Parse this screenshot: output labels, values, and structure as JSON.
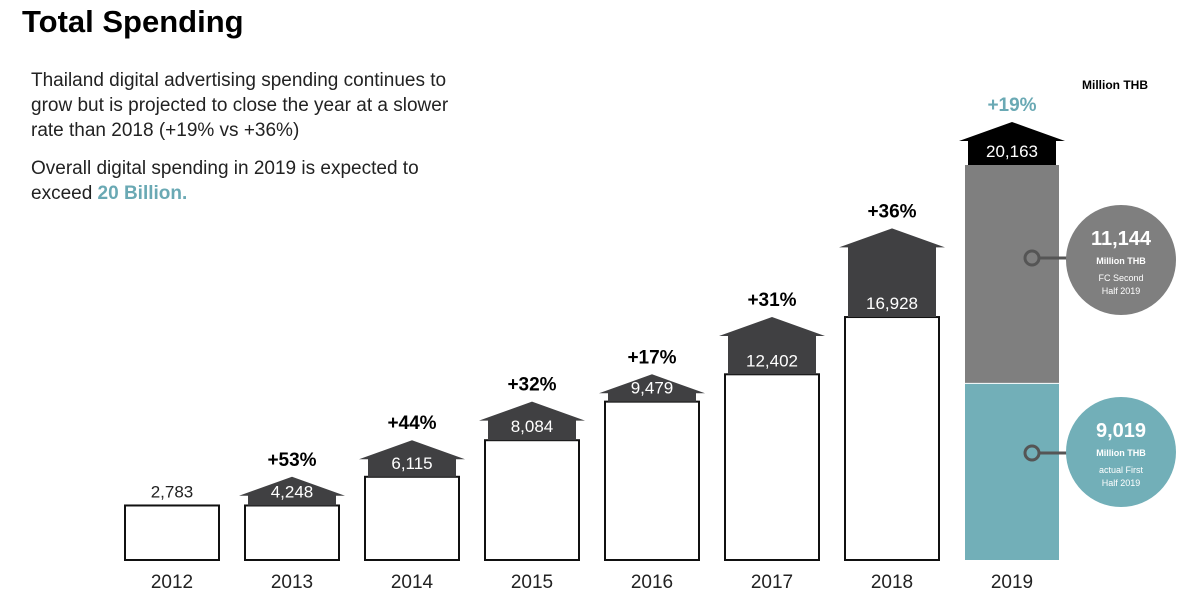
{
  "header": {
    "title": "Total Spending",
    "paragraph1": "Thailand digital advertising spending continues to grow but is projected to close the year at a slower rate than 2018 (+19% vs +36%)",
    "paragraph2_prefix": "Overall digital spending in 2019 is expected to exceed ",
    "paragraph2_highlight": "20 Billion.",
    "unit_label": "Million THB"
  },
  "colors": {
    "arrow": "#404042",
    "arrow_last": "#000000",
    "bar_fill": "#ffffff",
    "bar_stroke": "#111111",
    "forecast": "#7f7f7f",
    "actual": "#72afb8",
    "highlight": "#6aa9b4"
  },
  "chart_data": {
    "type": "bar",
    "categories": [
      "2012",
      "2013",
      "2014",
      "2015",
      "2016",
      "2017",
      "2018",
      "2019"
    ],
    "values": [
      2783,
      4248,
      6115,
      8084,
      9479,
      12402,
      16928,
      20163
    ],
    "value_labels": [
      "2,783",
      "4,248",
      "6,115",
      "8,084",
      "9,479",
      "12,402",
      "16,928",
      "20,163"
    ],
    "growth_labels": [
      "",
      "+53%",
      "+44%",
      "+32%",
      "+17%",
      "+31%",
      "+36%",
      "+19%"
    ],
    "ylabel": "Million THB",
    "ylim": [
      0,
      23000
    ],
    "stacked_2019": {
      "forecast": {
        "value": 11144,
        "label": "11,144",
        "unit": "Million THB",
        "desc_lines": [
          "FC Second",
          "Half 2019"
        ]
      },
      "actual": {
        "value": 9019,
        "label": "9,019",
        "unit": "Million THB",
        "desc_lines": [
          "actual First",
          "Half 2019"
        ]
      }
    }
  }
}
